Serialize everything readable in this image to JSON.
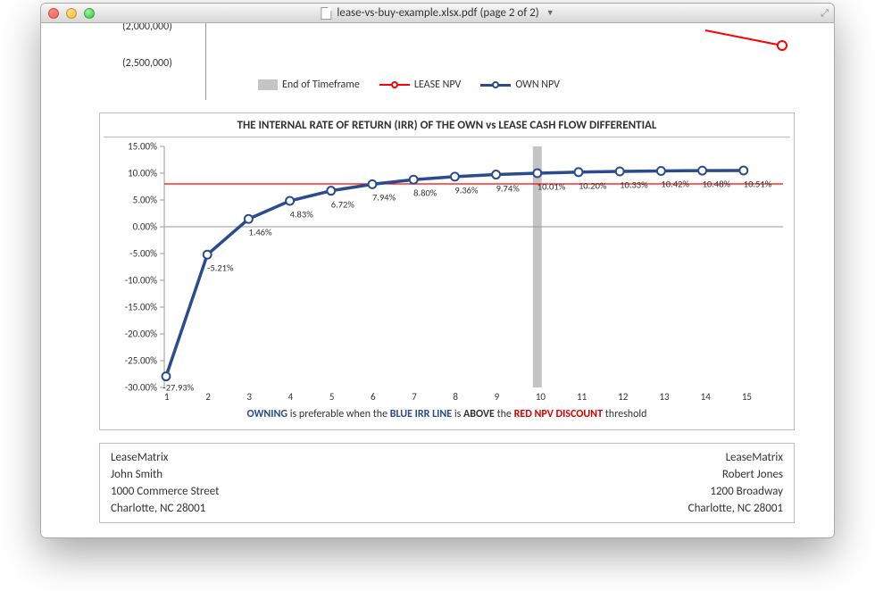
{
  "window": {
    "title": "lease-vs-buy-example.xlsx.pdf (page 2 of 2)"
  },
  "top_chart": {
    "ytick1_label": "(2,000,000)",
    "ytick2_label": "(2,500,000)",
    "legend": {
      "timeframe": "End of Timeframe",
      "lease": "LEASE NPV",
      "own": "OWN NPV"
    },
    "red_line_color": "#ff0000",
    "blue_line_color": "#2a4b8d"
  },
  "chart": {
    "title": "THE INTERNAL RATE OF RETURN (IRR) OF THE OWN vs LEASE CASH FLOW DIFFERENTIAL",
    "type": "line",
    "x": [
      1,
      2,
      3,
      4,
      5,
      6,
      7,
      8,
      9,
      10,
      11,
      12,
      13,
      14,
      15
    ],
    "values": [
      -27.93,
      -5.21,
      1.46,
      4.83,
      6.72,
      7.94,
      8.8,
      9.36,
      9.74,
      10.01,
      10.2,
      10.33,
      10.42,
      10.48,
      10.51
    ],
    "value_labels": [
      "-27.93%",
      "-5.21%",
      "1.46%",
      "4.83%",
      "6.72%",
      "7.94%",
      "8.80%",
      "9.36%",
      "9.74%",
      "10.01%",
      "10.20%",
      "10.33%",
      "10.42%",
      "10.48%",
      "10.51%"
    ],
    "ylim": [
      -30,
      15
    ],
    "ytick_step": 5,
    "yticks": [
      15,
      10,
      5,
      0,
      -5,
      -10,
      -15,
      -20,
      -25,
      -30
    ],
    "ytick_labels": [
      "15.00%",
      "10.00%",
      "5.00%",
      "0.00%",
      "-5.00%",
      "-10.00%",
      "-15.00%",
      "-20.00%",
      "-25.00%",
      "-30.00%"
    ],
    "threshold_y": 8,
    "threshold_color": "#ff0000",
    "timeframe_x": 10,
    "timeframe_color": "#c4c4c4",
    "timeframe_width": 10,
    "line_color": "#2a4b8d",
    "line_width": 3.5,
    "marker_fill": "#ffffff",
    "marker_stroke": "#2a4b8d",
    "marker_radius": 4.5,
    "axis_color": "#999999",
    "bg": "#ffffff",
    "caption_parts": {
      "p1": "OWNING",
      "p2": " is preferable when the ",
      "p3": "BLUE IRR LINE",
      "p4": " is ",
      "p5": "ABOVE",
      "p6": " the ",
      "p7": "RED NPV DISCOUNT",
      "p8": " threshold"
    }
  },
  "footer": {
    "left": {
      "l1": "LeaseMatrix",
      "l2": "John Smith",
      "l3": "1000 Commerce Street",
      "l4": "Charlotte, NC 28001"
    },
    "right": {
      "l1": "LeaseMatrix",
      "l2": "Robert Jones",
      "l3": "1200 Broadway",
      "l4": "Charlotte, NC 28001"
    }
  }
}
